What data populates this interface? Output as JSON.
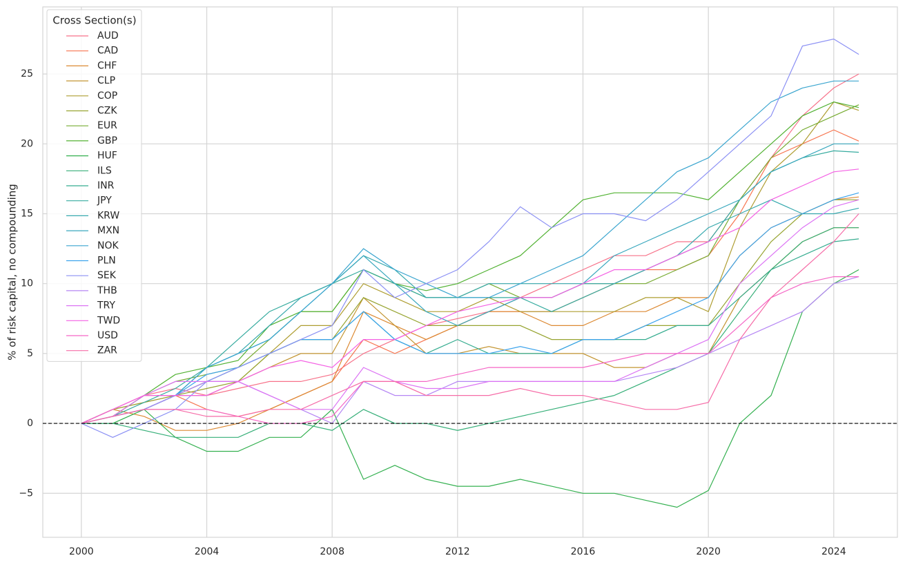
{
  "chart_data": {
    "type": "line",
    "y_label": "% of risk capital, no compounding",
    "legend_title": "Cross Section(s)",
    "legend_position": "upper left",
    "grid": true,
    "hline": 0,
    "x": [
      2000,
      2001,
      2002,
      2003,
      2004,
      2005,
      2006,
      2007,
      2008,
      2009,
      2010,
      2011,
      2012,
      2013,
      2014,
      2015,
      2016,
      2017,
      2018,
      2019,
      2020,
      2021,
      2022,
      2023,
      2024,
      2024.8
    ],
    "xlim": [
      1998.77,
      2026.03
    ],
    "xticks": [
      2000,
      2004,
      2008,
      2012,
      2016,
      2020,
      2024
    ],
    "ylim": [
      -8.15,
      29.8
    ],
    "yticks": [
      {
        "value": -5,
        "label": "−5"
      },
      0,
      5,
      10,
      15,
      20,
      25
    ],
    "series": [
      {
        "name": "AUD",
        "color": "#f77189",
        "values": [
          0,
          1,
          2,
          2.5,
          2,
          2.5,
          3,
          3,
          3.5,
          5,
          6,
          7,
          7.5,
          8,
          9,
          10,
          11,
          12,
          12,
          13,
          13,
          16,
          19,
          22,
          24,
          25
        ]
      },
      {
        "name": "CAD",
        "color": "#f7754f",
        "values": [
          0,
          1,
          1.5,
          2,
          1,
          0.5,
          1,
          2,
          3,
          6,
          5,
          6,
          7,
          8,
          8,
          8,
          9,
          10,
          11,
          11,
          12,
          15,
          19,
          20,
          21,
          20.2
        ]
      },
      {
        "name": "CHF",
        "color": "#dc8932",
        "values": [
          0,
          1,
          0.5,
          -0.5,
          -0.5,
          0,
          1,
          2,
          3,
          8,
          7,
          6,
          7,
          8,
          8,
          7,
          7,
          8,
          8,
          9,
          9,
          12,
          14,
          15,
          16,
          16.2
        ]
      },
      {
        "name": "CLP",
        "color": "#c39532",
        "values": [
          0,
          0.5,
          2,
          2,
          3,
          3,
          4,
          5,
          5,
          9,
          7,
          5,
          5,
          5.5,
          5,
          5,
          5,
          4,
          4,
          5,
          5,
          9,
          11,
          13,
          14,
          14
        ]
      },
      {
        "name": "COP",
        "color": "#ae9d31",
        "values": [
          0,
          0.5,
          1,
          2,
          2,
          3,
          5,
          7,
          7,
          10,
          9,
          8,
          8,
          9,
          8,
          8,
          8,
          8,
          9,
          9,
          8,
          14,
          18,
          20,
          23,
          22.4
        ]
      },
      {
        "name": "CZK",
        "color": "#97a431",
        "values": [
          0,
          1,
          1.5,
          2,
          2.5,
          3,
          5,
          6,
          6,
          9,
          8,
          7,
          7,
          7,
          7,
          6,
          6,
          6,
          7,
          7,
          7,
          10,
          13,
          15,
          16,
          16
        ]
      },
      {
        "name": "EUR",
        "color": "#77ab31",
        "values": [
          0,
          0.5,
          2,
          3,
          3.5,
          4,
          6,
          8,
          8,
          11,
          10,
          9,
          9,
          10,
          9,
          9,
          10,
          10,
          10,
          11,
          12,
          16,
          19,
          21,
          22,
          22.8
        ]
      },
      {
        "name": "GBP",
        "color": "#50b131",
        "values": [
          0,
          0.5,
          2,
          3.5,
          4,
          4.5,
          7,
          8,
          8,
          11,
          10,
          9.5,
          10,
          11,
          12,
          14,
          16,
          16.5,
          16.5,
          16.5,
          16,
          18,
          20,
          22,
          23,
          22.6
        ]
      },
      {
        "name": "HUF",
        "color": "#33b04f",
        "values": [
          0,
          0,
          1,
          -1,
          -2,
          -2,
          -1,
          -1,
          1,
          -4,
          -3,
          -4,
          -4.5,
          -4.5,
          -4,
          -4.5,
          -5,
          -5,
          -5.5,
          -6,
          -4.8,
          0,
          2,
          8,
          10,
          11
        ]
      },
      {
        "name": "ILS",
        "color": "#34ae77",
        "values": [
          0,
          0,
          -0.5,
          -1,
          -1,
          -1,
          0,
          0,
          -0.5,
          1,
          0,
          0,
          -0.5,
          0,
          0.5,
          1,
          1.5,
          2,
          3,
          4,
          5,
          8,
          11,
          13,
          14,
          14
        ]
      },
      {
        "name": "INR",
        "color": "#35ac8f",
        "values": [
          0,
          0.5,
          1,
          2,
          3,
          4,
          5,
          6,
          6,
          8,
          6,
          5,
          6,
          5,
          5,
          5,
          6,
          6,
          6,
          7,
          7,
          9,
          11,
          12,
          13,
          13.2
        ]
      },
      {
        "name": "JPY",
        "color": "#36ab9f",
        "values": [
          0,
          0.5,
          1.5,
          2.5,
          4,
          6,
          8,
          9,
          10,
          11,
          10,
          9,
          9,
          9,
          9,
          8,
          9,
          10,
          11,
          12,
          13,
          16,
          18,
          19,
          19.5,
          19.4
        ]
      },
      {
        "name": "KRW",
        "color": "#37a9ae",
        "values": [
          0,
          0.5,
          1,
          2,
          4,
          5,
          7,
          9,
          10,
          12,
          11,
          9,
          9,
          10,
          10,
          10,
          10,
          10,
          11,
          12,
          14,
          15,
          16,
          15,
          15,
          15.4
        ]
      },
      {
        "name": "MXN",
        "color": "#38a7bd",
        "values": [
          0,
          0.5,
          1,
          2,
          4,
          5,
          6,
          8,
          10,
          12,
          10,
          8,
          7,
          8,
          9,
          9,
          10,
          12,
          13,
          14,
          15,
          16,
          18,
          19,
          20,
          20
        ]
      },
      {
        "name": "NOK",
        "color": "#3aa5cf",
        "values": [
          0,
          0.5,
          1,
          2,
          4,
          5,
          6,
          8,
          10,
          12.5,
          11,
          10,
          9,
          9,
          10,
          11,
          12,
          14,
          16,
          18,
          19,
          21,
          23,
          24,
          24.5,
          24.5
        ]
      },
      {
        "name": "PLN",
        "color": "#3ba3ec",
        "values": [
          0,
          0.5,
          1,
          2,
          3.5,
          4,
          5,
          6,
          6,
          8,
          6,
          5,
          5,
          5,
          5.5,
          5,
          6,
          6,
          7,
          8,
          9,
          12,
          14,
          15,
          16,
          16.5
        ]
      },
      {
        "name": "SEK",
        "color": "#8b90f4",
        "values": [
          0,
          -1,
          0,
          1,
          3,
          4,
          5,
          6,
          7,
          11,
          9,
          10,
          11,
          13,
          15.5,
          14,
          15,
          15,
          14.5,
          16,
          18,
          20,
          22,
          27,
          27.5,
          26.4
        ]
      },
      {
        "name": "THB",
        "color": "#b586f4",
        "values": [
          0,
          0.5,
          1,
          2,
          3,
          3,
          2,
          1,
          0,
          3,
          2,
          2,
          3,
          3,
          3,
          3,
          3,
          3,
          3.5,
          4,
          5,
          6,
          7,
          8,
          10,
          10.5
        ]
      },
      {
        "name": "TRY",
        "color": "#dc73f4",
        "values": [
          0,
          0.5,
          2,
          3,
          3,
          3,
          2,
          1,
          1,
          4,
          3,
          2.5,
          2.5,
          3,
          3,
          3,
          3,
          3,
          4,
          5,
          6,
          10,
          12,
          14,
          15.5,
          16
        ]
      },
      {
        "name": "TWD",
        "color": "#f461e4",
        "values": [
          0,
          1,
          2,
          2,
          2,
          3,
          4,
          4.5,
          4,
          6,
          6,
          7,
          8,
          8.5,
          9,
          9,
          10,
          11,
          11,
          12,
          13,
          14,
          16,
          17,
          18,
          18.2
        ]
      },
      {
        "name": "USD",
        "color": "#f566c6",
        "values": [
          0,
          0.5,
          1,
          1,
          1,
          0.5,
          0,
          0,
          0.5,
          3,
          3,
          3,
          3.5,
          4,
          4,
          4,
          4,
          4.5,
          5,
          5,
          5,
          7,
          9,
          10,
          10.5,
          10.5
        ]
      },
      {
        "name": "ZAR",
        "color": "#f66ba7",
        "values": [
          0,
          0.5,
          1,
          1,
          0.5,
          0.5,
          1,
          1,
          2,
          3,
          3,
          2,
          2,
          2,
          2.5,
          2,
          2,
          1.5,
          1,
          1,
          1.5,
          6,
          9,
          11,
          13,
          15
        ]
      }
    ]
  }
}
